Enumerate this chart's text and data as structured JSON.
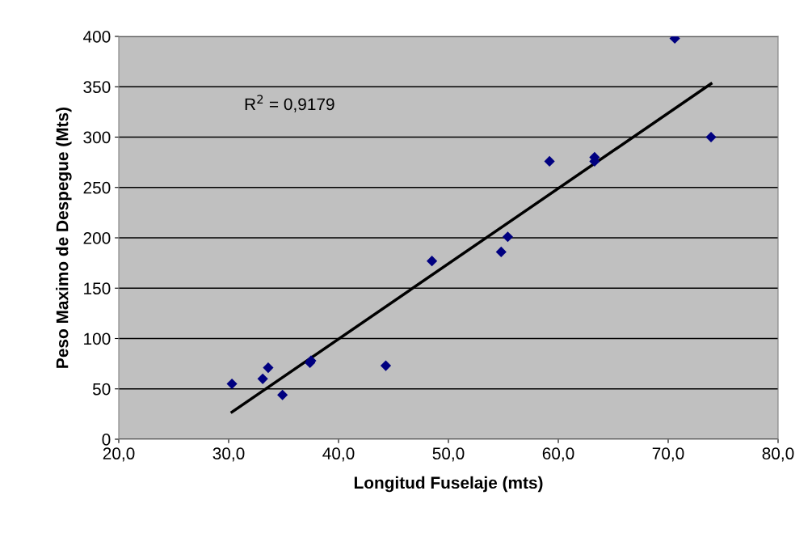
{
  "chart_data": {
    "type": "scatter",
    "xlabel": "Longitud Fuselaje (mts)",
    "ylabel": "Peso Maximo de Despegue (Mts)",
    "series": [
      {
        "color": "#000080",
        "marker": "diamond",
        "x": [
          30.3,
          33.1,
          33.6,
          34.9,
          37.4,
          37.5,
          44.3,
          48.5,
          54.8,
          55.4,
          59.2,
          63.3,
          63.3,
          70.6,
          73.9
        ],
        "values": [
          55,
          60,
          71,
          44,
          76,
          78,
          73,
          177,
          186,
          201,
          276,
          276,
          280,
          398,
          300
        ]
      },
      {
        "type": "line",
        "color": "#000000",
        "marker": "none",
        "line_style": "solid",
        "x": [
          30.3,
          73.9
        ],
        "values": [
          27,
          353
        ]
      }
    ],
    "annotations": [
      "R$^{2}$ = 0,9179"
    ],
    "xlim": [
      20,
      80
    ],
    "xticks": [
      {
        "value": 20,
        "label": "20,0"
      },
      {
        "value": 30,
        "label": "30,0"
      },
      {
        "value": 40,
        "label": "40,0"
      },
      {
        "value": 50,
        "label": "50,0"
      },
      {
        "value": 60,
        "label": "60,0"
      },
      {
        "value": 70,
        "label": "70,0"
      },
      {
        "value": 80,
        "label": "80,0"
      }
    ],
    "ylim": [
      0,
      400
    ],
    "yticks": [
      0,
      50,
      100,
      150,
      200,
      250,
      300,
      350,
      400
    ],
    "grid": "y",
    "legend": false
  }
}
